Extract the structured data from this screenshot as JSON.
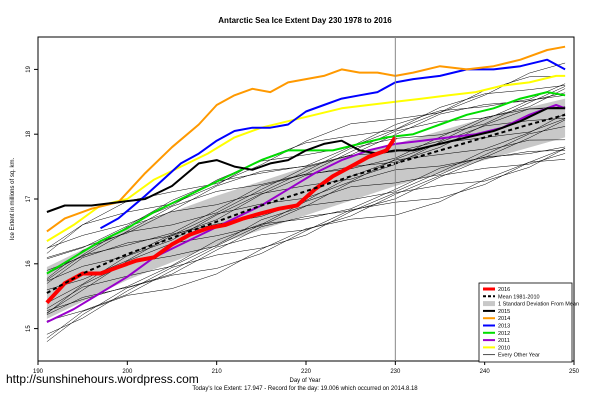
{
  "chart_data": {
    "type": "line",
    "title": "Antarctic Sea Ice Extent Day 230 1978 to 2016",
    "xlabel": "Day of Year",
    "ylabel": "Ice Extent in millions of sq. km.",
    "subtitle": "Today's Ice Extent: 17.947 - Record for the day: 19.006 which occurred on 2014.8.18",
    "xlim": [
      190,
      250
    ],
    "ylim": [
      14.5,
      19.5
    ],
    "x_ticks": [
      "190",
      "200",
      "210",
      "220",
      "230",
      "240",
      "250"
    ],
    "y_ticks": [
      "15",
      "16",
      "17",
      "18",
      "19"
    ],
    "current_day": 230,
    "grid": false,
    "legend_position": "bottom-right",
    "legend": [
      {
        "label": "2016",
        "color": "#ff0000",
        "style": "solid-thick"
      },
      {
        "label": "Mean 1981-2010",
        "color": "#000000",
        "style": "dashed"
      },
      {
        "label": "1 Standard Deviation From Mean",
        "color": "#c8c8c8",
        "style": "band"
      },
      {
        "label": "2015",
        "color": "#000000",
        "style": "solid"
      },
      {
        "label": "2014",
        "color": "#ff9900",
        "style": "solid"
      },
      {
        "label": "2013",
        "color": "#0000ff",
        "style": "solid"
      },
      {
        "label": "2012",
        "color": "#00dd00",
        "style": "solid"
      },
      {
        "label": "2011",
        "color": "#9900cc",
        "style": "solid"
      },
      {
        "label": "2010",
        "color": "#ffff00",
        "style": "solid"
      },
      {
        "label": "Every Other Year",
        "color": "#000000",
        "style": "thin"
      }
    ],
    "mean": {
      "x": [
        191,
        195,
        200,
        205,
        210,
        215,
        220,
        225,
        230,
        235,
        240,
        245,
        249
      ],
      "values": [
        15.55,
        15.85,
        16.15,
        16.4,
        16.65,
        16.9,
        17.12,
        17.35,
        17.55,
        17.75,
        17.95,
        18.15,
        18.3
      ]
    },
    "sd_band": {
      "x": [
        191,
        200,
        210,
        220,
        230,
        240,
        249
      ],
      "upper": [
        15.95,
        16.55,
        17.05,
        17.5,
        17.85,
        18.25,
        18.55
      ],
      "lower": [
        15.15,
        15.75,
        16.3,
        16.75,
        17.2,
        17.6,
        17.95
      ]
    },
    "series": [
      {
        "name": "2016",
        "color": "#ff0000",
        "width": 4,
        "x": [
          191,
          193,
          195,
          197,
          199,
          201,
          203,
          205,
          207,
          209,
          211,
          213,
          215,
          217,
          219,
          221,
          223,
          225,
          227,
          229,
          230
        ],
        "values": [
          15.4,
          15.7,
          15.85,
          15.85,
          15.95,
          16.05,
          16.1,
          16.3,
          16.45,
          16.55,
          16.6,
          16.7,
          16.78,
          16.85,
          16.9,
          17.15,
          17.35,
          17.5,
          17.65,
          17.75,
          17.95
        ]
      },
      {
        "name": "2015",
        "color": "#000000",
        "width": 2,
        "x": [
          191,
          193,
          196,
          199,
          202,
          205,
          208,
          210,
          212,
          214,
          216,
          218,
          220,
          222,
          224,
          226,
          228,
          230,
          232,
          235,
          238,
          241,
          244,
          247,
          249
        ],
        "values": [
          16.8,
          16.9,
          16.9,
          16.95,
          17.0,
          17.2,
          17.55,
          17.6,
          17.5,
          17.45,
          17.55,
          17.6,
          17.75,
          17.85,
          17.9,
          17.75,
          17.7,
          17.75,
          17.75,
          17.85,
          17.95,
          18.05,
          18.2,
          18.4,
          18.4
        ]
      },
      {
        "name": "2014",
        "color": "#ff9900",
        "width": 2,
        "x": [
          191,
          193,
          196,
          199,
          202,
          205,
          208,
          210,
          212,
          214,
          216,
          218,
          220,
          222,
          224,
          226,
          228,
          230,
          232,
          235,
          238,
          241,
          244,
          247,
          249
        ],
        "values": [
          16.5,
          16.7,
          16.85,
          16.95,
          17.4,
          17.8,
          18.15,
          18.45,
          18.6,
          18.7,
          18.65,
          18.8,
          18.85,
          18.9,
          19.0,
          18.95,
          18.95,
          18.9,
          18.95,
          19.05,
          19.0,
          19.05,
          19.15,
          19.3,
          19.35
        ]
      },
      {
        "name": "2013",
        "color": "#0000ff",
        "width": 2,
        "x": [
          197,
          199,
          202,
          204,
          206,
          208,
          210,
          212,
          214,
          216,
          218,
          220,
          222,
          224,
          226,
          228,
          230,
          232,
          235,
          238,
          241,
          244,
          247,
          249
        ],
        "values": [
          16.55,
          16.7,
          17.05,
          17.3,
          17.55,
          17.7,
          17.9,
          18.05,
          18.1,
          18.1,
          18.15,
          18.35,
          18.45,
          18.55,
          18.6,
          18.65,
          18.8,
          18.85,
          18.9,
          19.0,
          19.0,
          19.05,
          19.15,
          19.0
        ]
      },
      {
        "name": "2012",
        "color": "#00dd00",
        "width": 2,
        "x": [
          191,
          194,
          197,
          200,
          203,
          206,
          209,
          212,
          215,
          218,
          220,
          223,
          226,
          229,
          232,
          235,
          238,
          241,
          244,
          247,
          249
        ],
        "values": [
          15.85,
          16.1,
          16.35,
          16.55,
          16.8,
          17.0,
          17.2,
          17.4,
          17.6,
          17.75,
          17.75,
          17.75,
          17.85,
          17.95,
          18.0,
          18.15,
          18.3,
          18.4,
          18.55,
          18.65,
          18.6
        ]
      },
      {
        "name": "2011",
        "color": "#9900cc",
        "width": 2,
        "x": [
          191,
          194,
          197,
          200,
          203,
          206,
          209,
          212,
          215,
          218,
          221,
          224,
          227,
          230,
          233,
          236,
          239,
          242,
          245,
          248,
          249
        ],
        "values": [
          15.1,
          15.3,
          15.55,
          15.8,
          16.1,
          16.3,
          16.5,
          16.7,
          16.9,
          17.15,
          17.4,
          17.6,
          17.75,
          17.85,
          17.9,
          17.95,
          18.0,
          18.1,
          18.3,
          18.45,
          18.4
        ]
      },
      {
        "name": "2010",
        "color": "#ffff00",
        "width": 2,
        "x": [
          191,
          194,
          197,
          200,
          203,
          206,
          209,
          212,
          215,
          218,
          221,
          224,
          227,
          230,
          233,
          236,
          239,
          242,
          245,
          248,
          249
        ],
        "values": [
          16.35,
          16.6,
          16.9,
          17.0,
          17.3,
          17.5,
          17.7,
          17.95,
          18.1,
          18.2,
          18.3,
          18.4,
          18.45,
          18.5,
          18.55,
          18.6,
          18.65,
          18.75,
          18.8,
          18.9,
          18.9
        ]
      }
    ]
  },
  "watermark": "http://sunshinehours.wordpress.com"
}
